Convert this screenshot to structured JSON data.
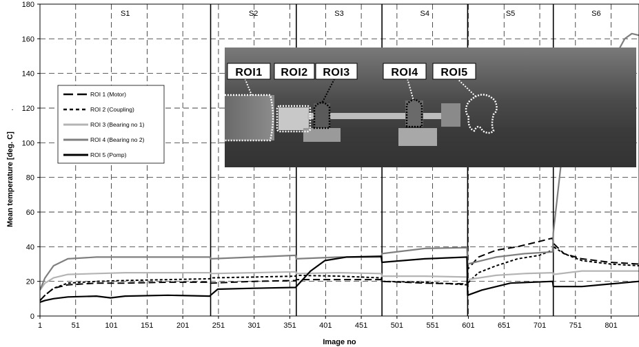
{
  "chart_data": {
    "type": "line",
    "xlabel": "Image no",
    "ylabel": "Mean  temperature [deg. C]",
    "ylabel_marker": ".",
    "xlim": [
      1,
      840
    ],
    "ylim": [
      0,
      180
    ],
    "xticks": [
      1,
      51,
      101,
      151,
      201,
      251,
      301,
      351,
      401,
      451,
      501,
      551,
      601,
      651,
      701,
      751,
      801
    ],
    "yticks": [
      0,
      20,
      40,
      60,
      80,
      100,
      120,
      140,
      160,
      180
    ],
    "grid": "dashed",
    "stages": [
      {
        "label": "S1",
        "start": 1,
        "end": 240
      },
      {
        "label": "S2",
        "start": 240,
        "end": 360
      },
      {
        "label": "S3",
        "start": 360,
        "end": 480
      },
      {
        "label": "S4",
        "start": 480,
        "end": 600
      },
      {
        "label": "S5",
        "start": 600,
        "end": 720
      },
      {
        "label": "S6",
        "start": 720,
        "end": 840
      }
    ],
    "legend": {
      "placement": "left, middle"
    },
    "series": [
      {
        "name": "ROI 1 (Motor)",
        "style": "long-dash",
        "color": "#000000",
        "x": [
          1,
          8,
          20,
          40,
          80,
          120,
          180,
          239,
          240,
          300,
          359,
          360,
          420,
          479,
          480,
          540,
          599,
          600,
          615,
          640,
          670,
          700,
          719,
          720,
          735,
          760,
          800,
          840
        ],
        "y": [
          9,
          12,
          16,
          18,
          19,
          19,
          19.5,
          19.5,
          19,
          20,
          20.5,
          21,
          21,
          21,
          20,
          19,
          18.5,
          27,
          34,
          38,
          40,
          43,
          45,
          42,
          36,
          33,
          31,
          30
        ]
      },
      {
        "name": "ROI 2 (Coupling)",
        "style": "short-dash",
        "color": "#000000",
        "x": [
          1,
          8,
          20,
          40,
          80,
          120,
          180,
          239,
          240,
          300,
          359,
          360,
          420,
          479,
          480,
          540,
          599,
          600,
          615,
          640,
          670,
          700,
          719,
          720,
          735,
          760,
          800,
          840
        ],
        "y": [
          9,
          12,
          16,
          19,
          20,
          20.5,
          21,
          21.5,
          22,
          22.5,
          23,
          23.5,
          23,
          22,
          20,
          19.5,
          18,
          19,
          25,
          29,
          33,
          35,
          38,
          40,
          36,
          32,
          30,
          29
        ]
      },
      {
        "name": "ROI 3 (Bearing no 1)",
        "style": "solid",
        "color": "#b4b4b4",
        "x": [
          1,
          8,
          20,
          40,
          80,
          120,
          180,
          239,
          240,
          300,
          359,
          360,
          420,
          479,
          480,
          540,
          599,
          600,
          640,
          680,
          719,
          720,
          760,
          800,
          840
        ],
        "y": [
          15,
          19,
          22,
          24,
          24.5,
          25,
          25,
          25,
          24.5,
          25,
          25.5,
          24.5,
          25,
          24.5,
          23,
          23,
          22.5,
          21,
          23.5,
          24.5,
          25,
          24,
          26,
          26,
          26
        ]
      },
      {
        "name": "ROI 4 (Bearing no 2)",
        "style": "solid",
        "color": "#7f7f7f",
        "x": [
          1,
          8,
          20,
          40,
          80,
          120,
          180,
          239,
          240,
          300,
          359,
          360,
          420,
          479,
          480,
          540,
          599,
          600,
          640,
          680,
          719,
          720,
          730,
          740,
          750,
          760,
          770,
          780,
          800,
          820,
          830,
          840
        ],
        "y": [
          15,
          22,
          29,
          33,
          34,
          34,
          34,
          34,
          33,
          34,
          35,
          33,
          34,
          34,
          36,
          39,
          39.5,
          30,
          34,
          36,
          37,
          48,
          85,
          120,
          140,
          128,
          135,
          138,
          145,
          160,
          163,
          162
        ]
      },
      {
        "name": "ROI 5 (Pomp)",
        "style": "solid",
        "color": "#000000",
        "x": [
          1,
          8,
          20,
          40,
          80,
          100,
          120,
          180,
          239,
          240,
          250,
          300,
          359,
          360,
          380,
          400,
          430,
          479,
          480,
          540,
          599,
          600,
          620,
          660,
          719,
          720,
          760,
          800,
          840
        ],
        "y": [
          8,
          9,
          10,
          11,
          11.5,
          10.5,
          11.5,
          12,
          11.5,
          12,
          15.5,
          16,
          16.5,
          17,
          26,
          32,
          34,
          34.5,
          31,
          33,
          34,
          12,
          15,
          19,
          20,
          17,
          17,
          18.5,
          20
        ]
      }
    ]
  },
  "inset": {
    "labels": [
      "ROI1",
      "ROI2",
      "ROI3",
      "ROI4",
      "ROI5"
    ]
  }
}
